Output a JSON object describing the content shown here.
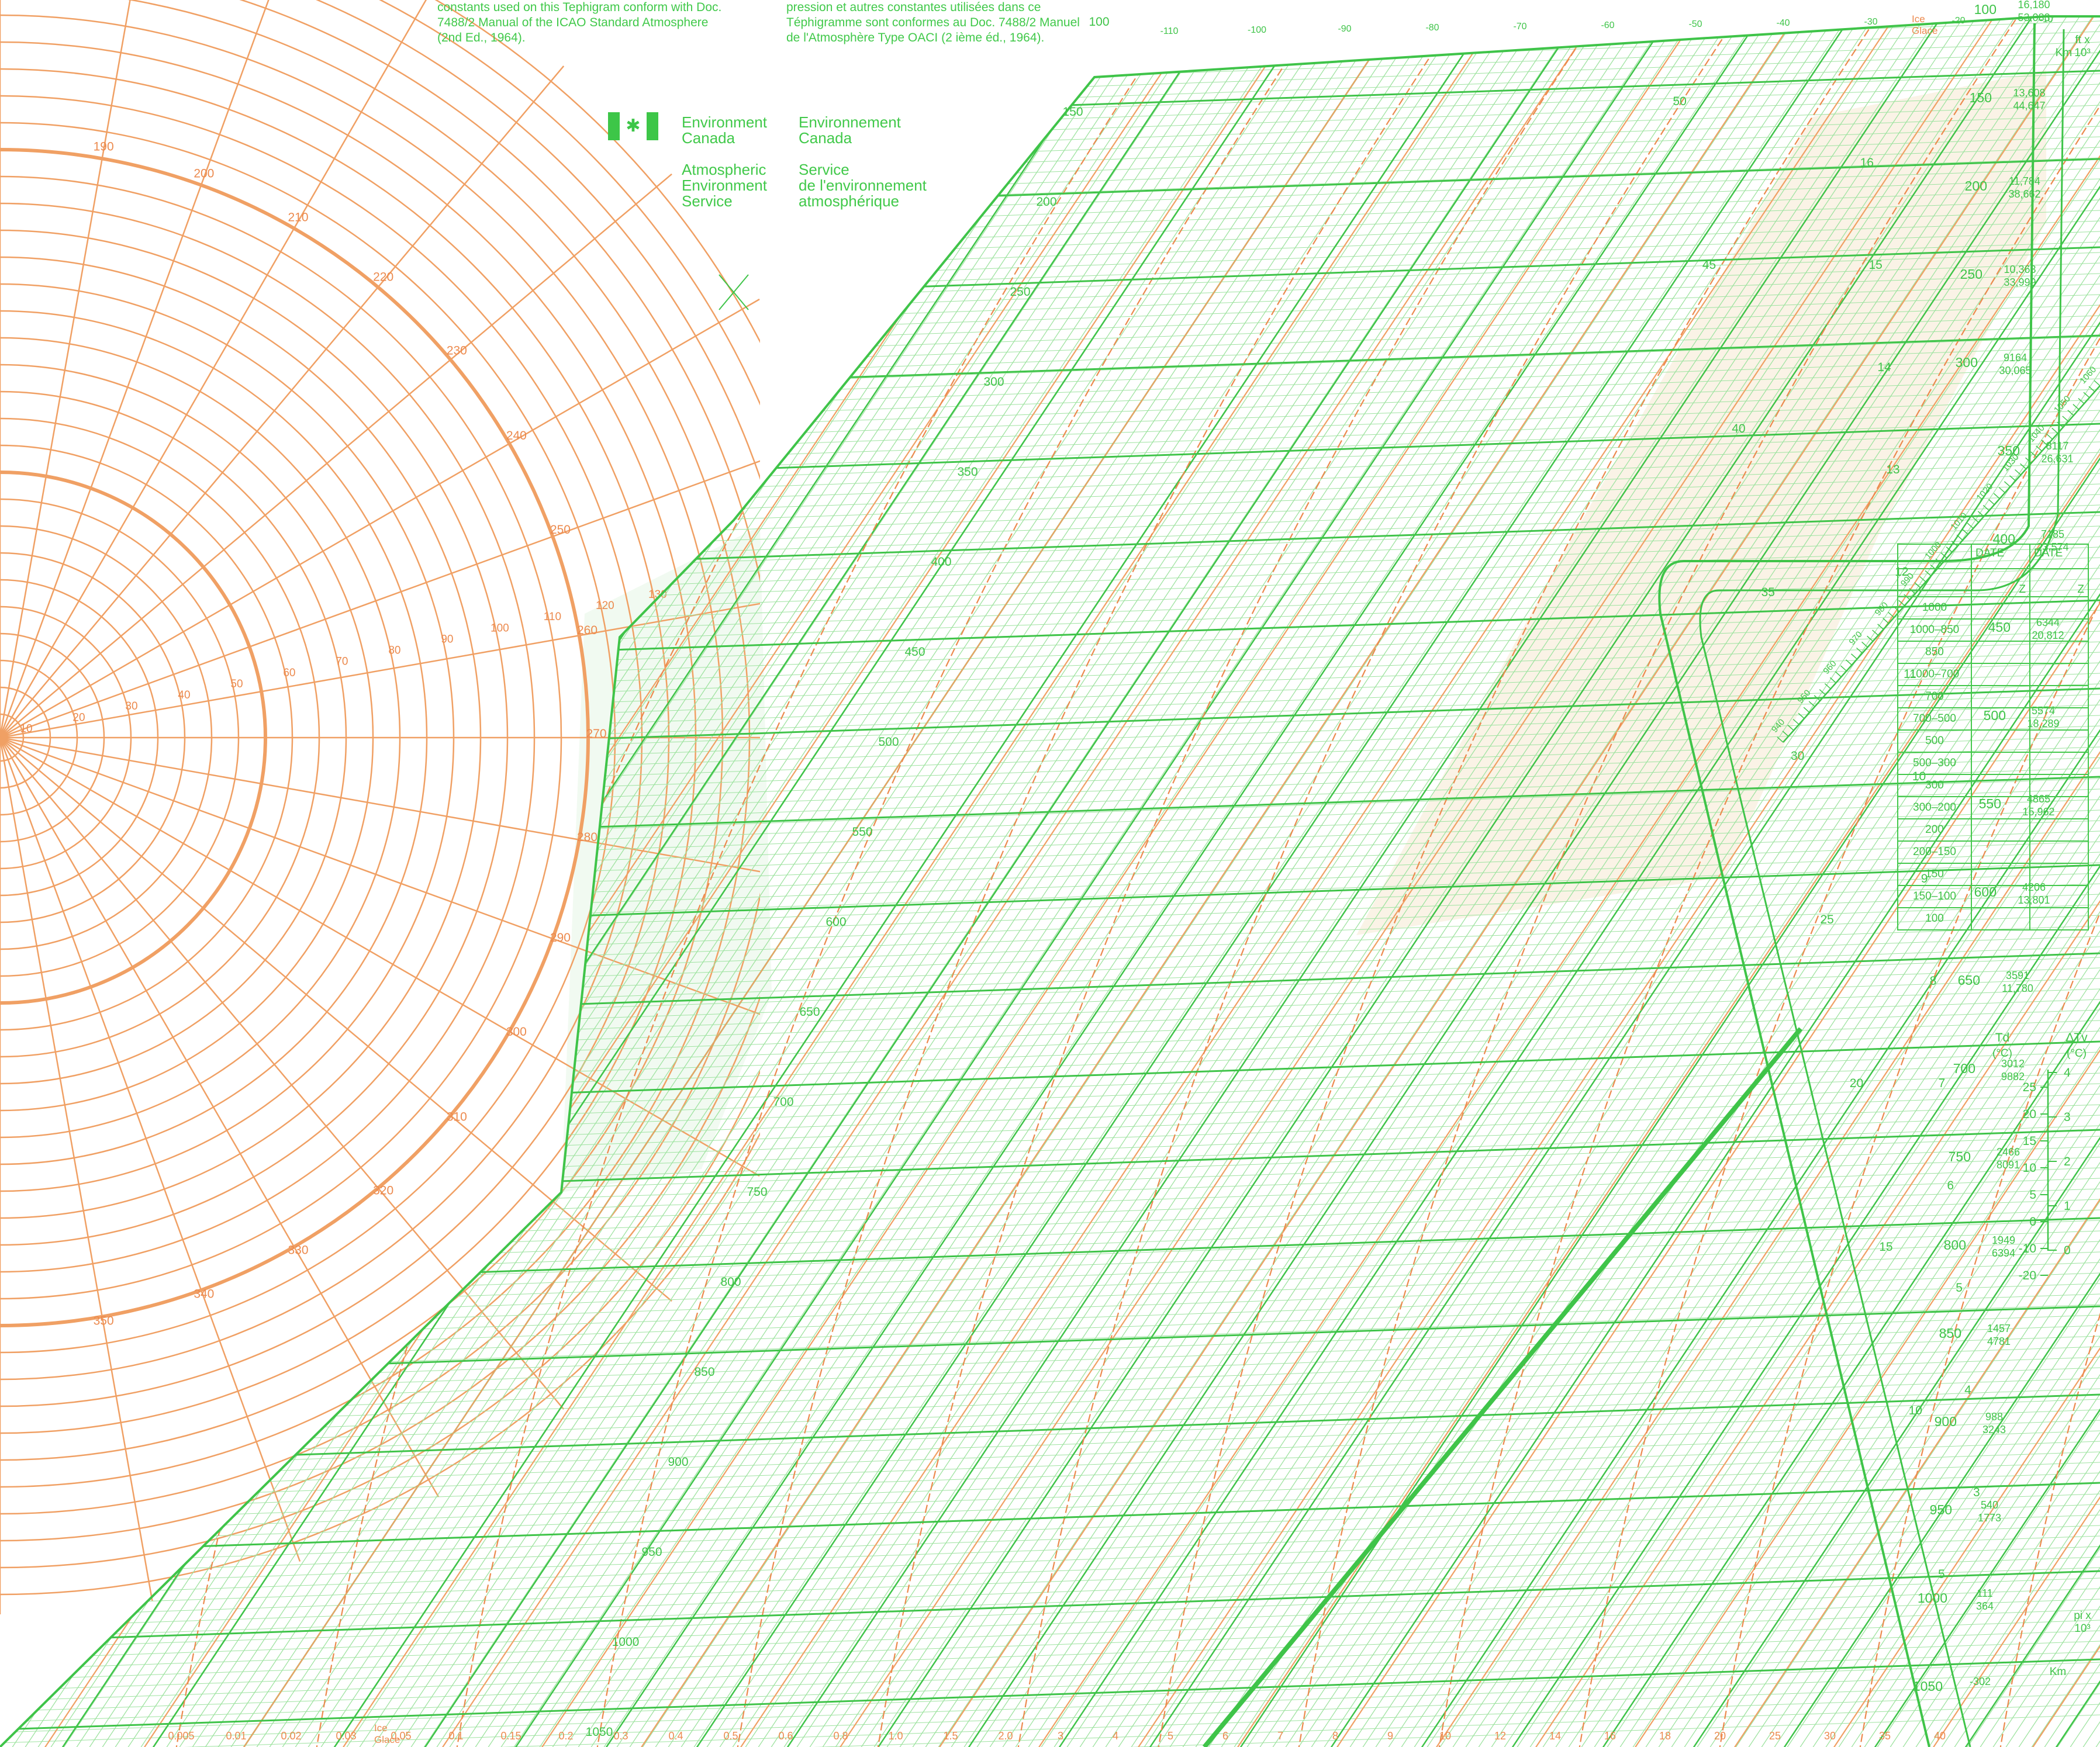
{
  "header": {
    "english_lines": [
      "constants used on this Tephigram conform with Doc.",
      "7488/2 Manual of the ICAO Standard Atmosphere",
      "(2nd Ed., 1964)."
    ],
    "french_lines": [
      "pression et autres constantes utilisées dans ce",
      "Téphigramme sont conformes au Doc. 7488/2 Manuel",
      "de l'Atmosphère Type OACI (2 ième éd., 1964)."
    ]
  },
  "agency": {
    "en_name": [
      "Environment",
      "Canada"
    ],
    "fr_name": [
      "Environnement",
      "Canada"
    ],
    "en_service": [
      "Atmospheric",
      "Environment",
      "Service"
    ],
    "fr_service": [
      "Service",
      "de l'environnement",
      "atmosphérique"
    ]
  },
  "colors": {
    "green": "#3fc449",
    "green_light": "#9ee3a0",
    "orange": "#f0a064",
    "orange_dark": "#ec8a4e",
    "shade": "#f6ead2"
  },
  "height_table": {
    "headers": [
      "DATE",
      "DATE"
    ],
    "z_label": "Z",
    "rows": [
      "1000",
      "1000–850",
      "850",
      "1000–700",
      "700",
      "700–500",
      "500",
      "500–300",
      "300",
      "300–200",
      "200",
      "200–150",
      "150",
      "150–100",
      "100"
    ]
  },
  "right_scale": {
    "td_label": "Td",
    "td_unit": "(°C)",
    "dtv_label": "ΔTv",
    "dtv_unit": "(°C)",
    "ft_label": "ft x",
    "ft_unit": "10³",
    "km_label": "Km",
    "pix_label": "pi x",
    "pix_unit": "10³"
  },
  "legend": {
    "ice": "Ice",
    "glace": "Glace"
  },
  "pressure_labels": [
    {
      "p": "100",
      "z": "16,180",
      "ft": "53,083"
    },
    {
      "p": "150",
      "z": "13,608",
      "ft": "44,647"
    },
    {
      "p": "200",
      "z": "11,784",
      "ft": "38,662"
    },
    {
      "p": "250",
      "z": "10,363",
      "ft": "33,999"
    },
    {
      "p": "300",
      "z": "9164",
      "ft": "30,065"
    },
    {
      "p": "350",
      "z": "8117",
      "ft": "26,631"
    },
    {
      "p": "400",
      "z": "7185",
      "ft": "23,574"
    },
    {
      "p": "450",
      "z": "6344",
      "ft": "20,812"
    },
    {
      "p": "500",
      "z": "5574",
      "ft": "18,289"
    },
    {
      "p": "550",
      "z": "4865",
      "ft": "15,962"
    },
    {
      "p": "600",
      "z": "4206",
      "ft": "13,801"
    },
    {
      "p": "650",
      "z": "3591",
      "ft": "11,780"
    },
    {
      "p": "700",
      "z": "3012",
      "ft": "9882"
    },
    {
      "p": "750",
      "z": "2466",
      "ft": "8091"
    },
    {
      "p": "800",
      "z": "1949",
      "ft": "6394"
    },
    {
      "p": "850",
      "z": "1457",
      "ft": "4781"
    },
    {
      "p": "900",
      "z": "988",
      "ft": "3243"
    },
    {
      "p": "950",
      "z": "540",
      "ft": "1773"
    },
    {
      "p": "1000",
      "z": "111",
      "ft": "364"
    },
    {
      "p": "1050",
      "z": "-302",
      "ft": ""
    }
  ],
  "isobar_values": [
    "100",
    "150",
    "200",
    "250",
    "300",
    "350",
    "400",
    "450",
    "500",
    "550",
    "600",
    "650",
    "700",
    "750",
    "800",
    "850",
    "900",
    "950",
    "1000",
    "1050"
  ],
  "isotherm_labels": [
    "-110",
    "-100",
    "-90",
    "-80",
    "-70",
    "-60",
    "-50",
    "-40",
    "-30",
    "-20",
    "-10",
    "0",
    "10",
    "20",
    "30",
    "40"
  ],
  "mixing_ratio_labels": [
    "0.005",
    "0.01",
    "0.02",
    "0.03",
    "0.05",
    "0.1",
    "0.15",
    "0.2",
    "0.3",
    "0.4",
    "0.5",
    "0.6",
    "0.8",
    "1.0",
    "1.5",
    "2.0",
    "3",
    "4",
    "5",
    "6",
    "7",
    "8",
    "9",
    "10",
    "12",
    "14",
    "16",
    "18",
    "20",
    "25",
    "30",
    "35",
    "40"
  ],
  "polar_radial_labels": [
    "190",
    "200",
    "210",
    "220",
    "230",
    "240",
    "250",
    "260",
    "270",
    "280",
    "290",
    "300",
    "310",
    "320",
    "330",
    "340",
    "350"
  ],
  "polar_ring_labels": [
    "10",
    "20",
    "30",
    "40",
    "50",
    "60",
    "70",
    "80",
    "90",
    "100",
    "110",
    "120",
    "130"
  ],
  "height_km_labels": [
    "3",
    "4",
    "5",
    "6",
    "7",
    "8",
    "9",
    "10",
    "11",
    "12",
    "13",
    "14",
    "15",
    "16"
  ],
  "height_kft_labels": [
    "5",
    "10",
    "15",
    "20",
    "25",
    "30",
    "35",
    "40",
    "45",
    "50"
  ],
  "td_scale": [
    "25",
    "20",
    "15",
    "10",
    "5",
    "0",
    "-10",
    "-20"
  ],
  "dtv_scale": [
    "4",
    "3",
    "2",
    "1",
    "0"
  ],
  "inclined_pressure_labels": [
    "940",
    "950",
    "960",
    "970",
    "980",
    "990",
    "1000",
    "1010",
    "1020",
    "1030",
    "1040",
    "1050",
    "1060"
  ]
}
